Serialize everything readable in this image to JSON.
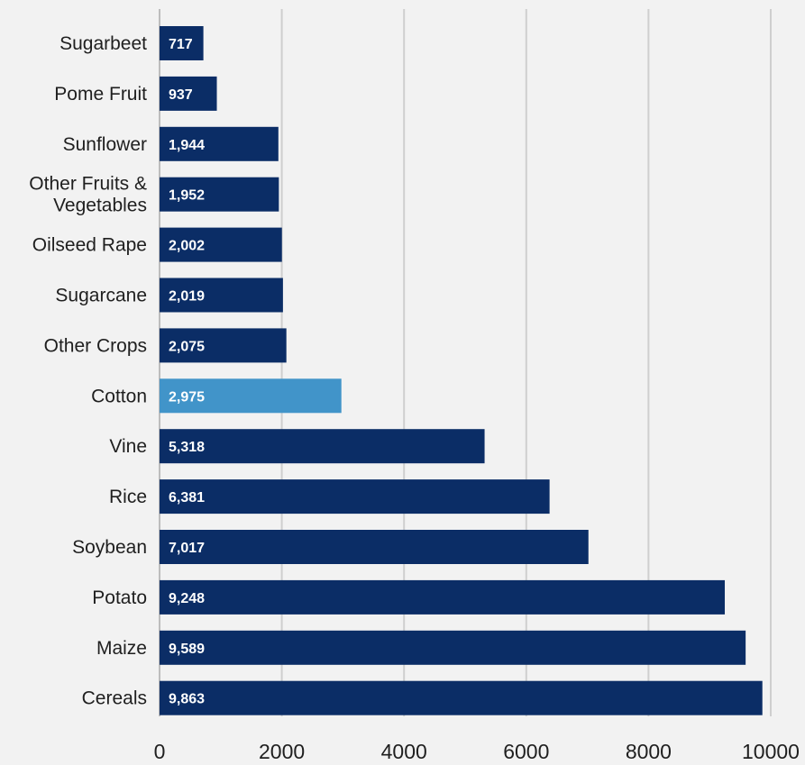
{
  "chart_data": {
    "type": "bar",
    "orientation": "horizontal",
    "title": "",
    "xlabel": "",
    "ylabel": "",
    "xlim": [
      0,
      10000
    ],
    "x_ticks": [
      "0",
      "2000",
      "4000",
      "6000",
      "8000",
      "10000"
    ],
    "grid": true,
    "categories": [
      "Sugarbeet",
      "Pome Fruit",
      "Sunflower",
      "Other Fruits & Vegetables",
      "Oilseed Rape",
      "Sugarcane",
      "Other Crops",
      "Cotton",
      "Vine",
      "Rice",
      "Soybean",
      "Potato",
      "Maize",
      "Cereals"
    ],
    "category_lines": [
      [
        "Sugarbeet"
      ],
      [
        "Pome Fruit"
      ],
      [
        "Sunflower"
      ],
      [
        "Other Fruits &",
        "Vegetables"
      ],
      [
        "Oilseed Rape"
      ],
      [
        "Sugarcane"
      ],
      [
        "Other Crops"
      ],
      [
        "Cotton"
      ],
      [
        "Vine"
      ],
      [
        "Rice"
      ],
      [
        "Soybean"
      ],
      [
        "Potato"
      ],
      [
        "Maize"
      ],
      [
        "Cereals"
      ]
    ],
    "values": [
      717,
      937,
      1944,
      1952,
      2002,
      2019,
      2075,
      2975,
      5318,
      6381,
      7017,
      9248,
      9589,
      9863
    ],
    "value_labels": [
      "717",
      "937",
      "1,944",
      "1,952",
      "2,002",
      "2,019",
      "2,075",
      "2,975",
      "5,318",
      "6,381",
      "7,017",
      "9,248",
      "9,589",
      "9,863"
    ],
    "highlight_category": "Cotton",
    "colors": {
      "bar": "#0b2d66",
      "highlight": "#4194c9",
      "grid": "#cfcfcf",
      "background": "#f2f2f2"
    }
  }
}
